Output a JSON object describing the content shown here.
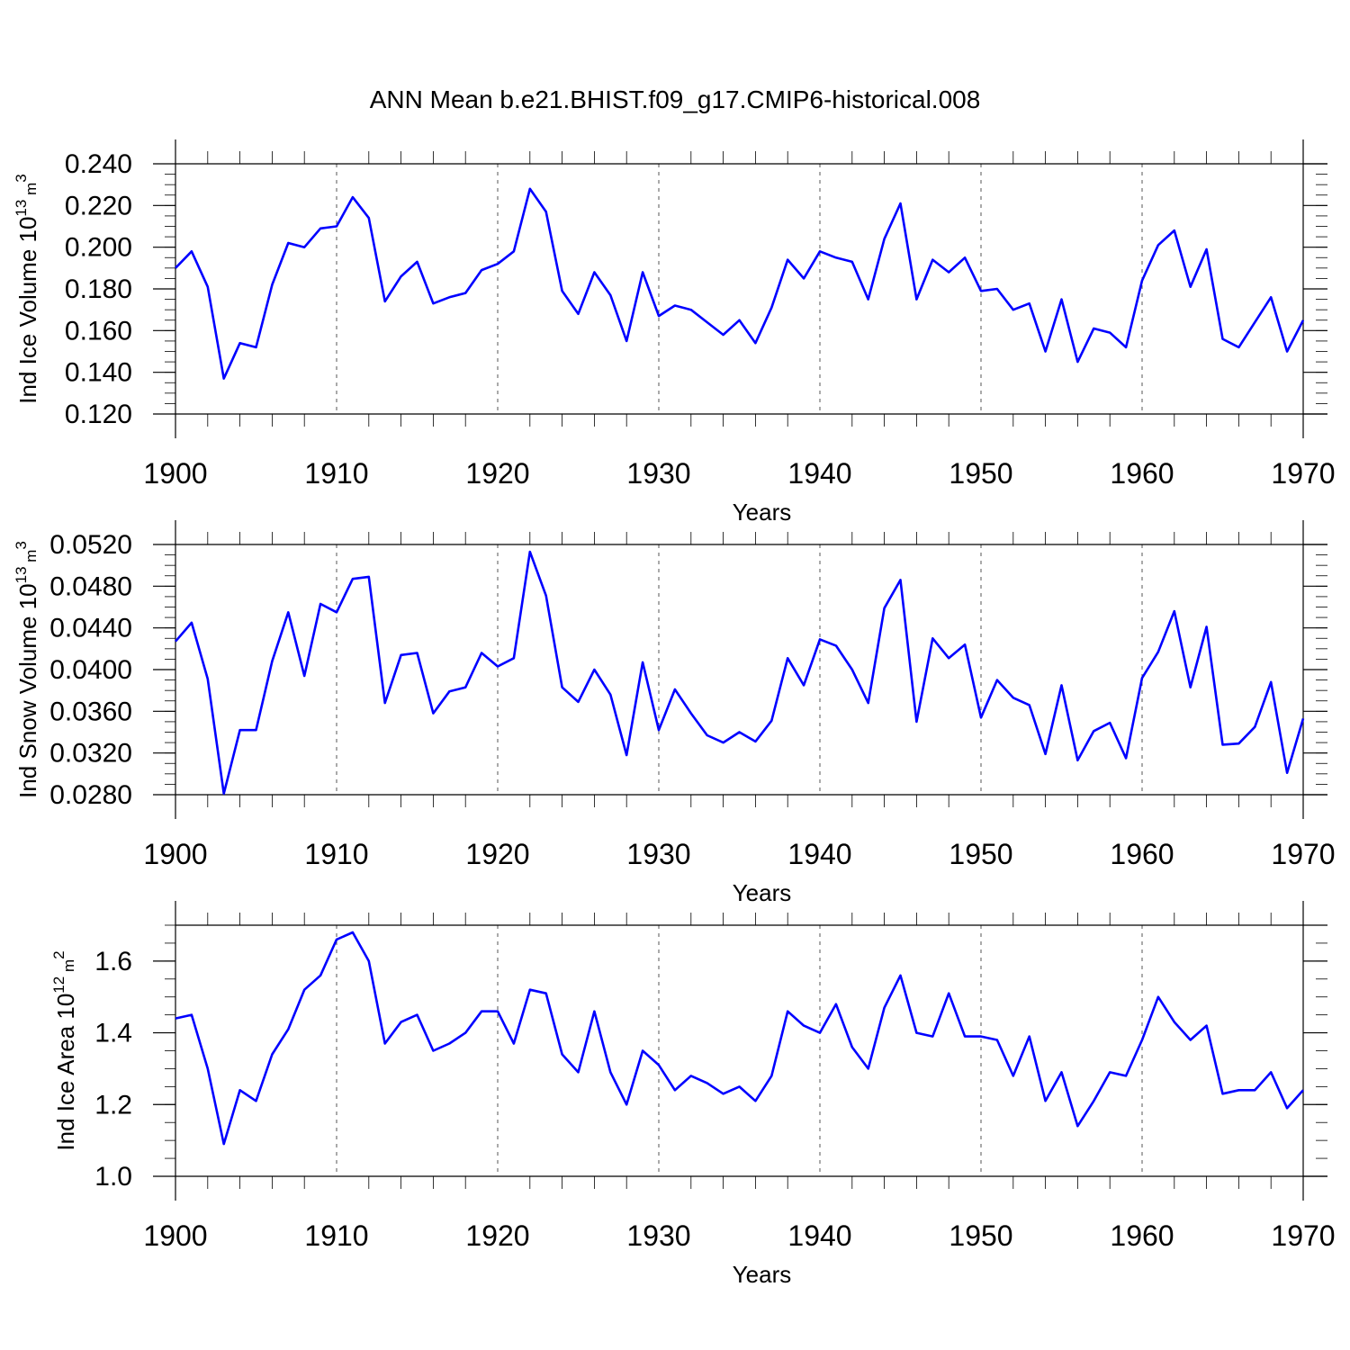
{
  "title": "ANN Mean b.e21.BHIST.f09_g17.CMIP6-historical.008",
  "line_color": "#0000ff",
  "chart_data": [
    {
      "type": "line",
      "ylabel_prefix": "Ind Ice Volume 10",
      "ylabel_exp": "13",
      "ylabel_unit": " m",
      "ylabel_unit_exp": "3",
      "xlabel": "Years",
      "xlim": [
        1900,
        1970
      ],
      "ylim": [
        0.12,
        0.24
      ],
      "yticks": [
        0.12,
        0.14,
        0.16,
        0.18,
        0.2,
        0.22,
        0.24
      ],
      "ytick_labels": [
        "0.120",
        "0.140",
        "0.160",
        "0.180",
        "0.200",
        "0.220",
        "0.240"
      ],
      "xticks": [
        1900,
        1910,
        1920,
        1930,
        1940,
        1950,
        1960,
        1970
      ],
      "xtick_labels": [
        "1900",
        "1910",
        "1920",
        "1930",
        "1940",
        "1950",
        "1960",
        "1970"
      ],
      "x_start": 1900,
      "values": [
        0.19,
        0.198,
        0.181,
        0.137,
        0.154,
        0.152,
        0.182,
        0.202,
        0.2,
        0.209,
        0.21,
        0.224,
        0.214,
        0.174,
        0.186,
        0.193,
        0.173,
        0.176,
        0.178,
        0.189,
        0.192,
        0.198,
        0.228,
        0.217,
        0.179,
        0.168,
        0.188,
        0.177,
        0.155,
        0.188,
        0.167,
        0.172,
        0.17,
        0.164,
        0.158,
        0.165,
        0.154,
        0.171,
        0.194,
        0.185,
        0.198,
        0.195,
        0.193,
        0.175,
        0.204,
        0.221,
        0.175,
        0.194,
        0.188,
        0.195,
        0.179,
        0.18,
        0.17,
        0.173,
        0.15,
        0.175,
        0.145,
        0.161,
        0.159,
        0.152,
        0.184,
        0.201,
        0.208,
        0.181,
        0.199,
        0.156,
        0.152,
        0.164,
        0.176,
        0.15,
        0.165
      ]
    },
    {
      "type": "line",
      "ylabel_prefix": "Ind Snow Volume 10",
      "ylabel_exp": "13",
      "ylabel_unit": " m",
      "ylabel_unit_exp": "3",
      "xlabel": "Years",
      "xlim": [
        1900,
        1970
      ],
      "ylim": [
        0.028,
        0.052
      ],
      "yticks": [
        0.028,
        0.032,
        0.036,
        0.04,
        0.044,
        0.048,
        0.052
      ],
      "ytick_labels": [
        "0.0280",
        "0.0320",
        "0.0360",
        "0.0400",
        "0.0440",
        "0.0480",
        "0.0520"
      ],
      "xticks": [
        1900,
        1910,
        1920,
        1930,
        1940,
        1950,
        1960,
        1970
      ],
      "xtick_labels": [
        "1900",
        "1910",
        "1920",
        "1930",
        "1940",
        "1950",
        "1960",
        "1970"
      ],
      "x_start": 1900,
      "values": [
        0.0427,
        0.0445,
        0.0391,
        0.0281,
        0.0342,
        0.0342,
        0.0408,
        0.0455,
        0.0394,
        0.0463,
        0.0455,
        0.0487,
        0.0489,
        0.0368,
        0.0414,
        0.0416,
        0.0358,
        0.0379,
        0.0383,
        0.0416,
        0.0403,
        0.0411,
        0.0513,
        0.0471,
        0.0383,
        0.0369,
        0.04,
        0.0376,
        0.0318,
        0.0407,
        0.0342,
        0.0381,
        0.0358,
        0.0337,
        0.033,
        0.034,
        0.0331,
        0.0351,
        0.0411,
        0.0385,
        0.0429,
        0.0423,
        0.04,
        0.0368,
        0.0459,
        0.0486,
        0.035,
        0.043,
        0.0411,
        0.0424,
        0.0354,
        0.039,
        0.0373,
        0.0366,
        0.0319,
        0.0385,
        0.0313,
        0.0341,
        0.0349,
        0.0315,
        0.0392,
        0.0417,
        0.0456,
        0.0383,
        0.0441,
        0.0328,
        0.0329,
        0.0345,
        0.0388,
        0.0301,
        0.0353
      ]
    },
    {
      "type": "line",
      "ylabel_prefix": "Ind Ice Area 10",
      "ylabel_exp": "12",
      "ylabel_unit": " m",
      "ylabel_unit_exp": "2",
      "xlabel": "Years",
      "xlim": [
        1900,
        1970
      ],
      "ylim": [
        1.0,
        1.7
      ],
      "yticks": [
        1.0,
        1.2,
        1.4,
        1.6
      ],
      "ytick_labels": [
        "1.0",
        "1.2",
        "1.4",
        "1.6"
      ],
      "xticks": [
        1900,
        1910,
        1920,
        1930,
        1940,
        1950,
        1960,
        1970
      ],
      "xtick_labels": [
        "1900",
        "1910",
        "1920",
        "1930",
        "1940",
        "1950",
        "1960",
        "1970"
      ],
      "x_start": 1900,
      "values": [
        1.44,
        1.45,
        1.3,
        1.09,
        1.24,
        1.21,
        1.34,
        1.41,
        1.52,
        1.56,
        1.66,
        1.68,
        1.6,
        1.37,
        1.43,
        1.45,
        1.35,
        1.37,
        1.4,
        1.46,
        1.46,
        1.37,
        1.52,
        1.51,
        1.34,
        1.29,
        1.46,
        1.29,
        1.2,
        1.35,
        1.31,
        1.24,
        1.28,
        1.26,
        1.23,
        1.25,
        1.21,
        1.28,
        1.46,
        1.42,
        1.4,
        1.48,
        1.36,
        1.3,
        1.47,
        1.56,
        1.4,
        1.39,
        1.51,
        1.39,
        1.39,
        1.38,
        1.28,
        1.39,
        1.21,
        1.29,
        1.14,
        1.21,
        1.29,
        1.28,
        1.38,
        1.5,
        1.43,
        1.38,
        1.42,
        1.23,
        1.24,
        1.24,
        1.29,
        1.19,
        1.24
      ]
    }
  ]
}
